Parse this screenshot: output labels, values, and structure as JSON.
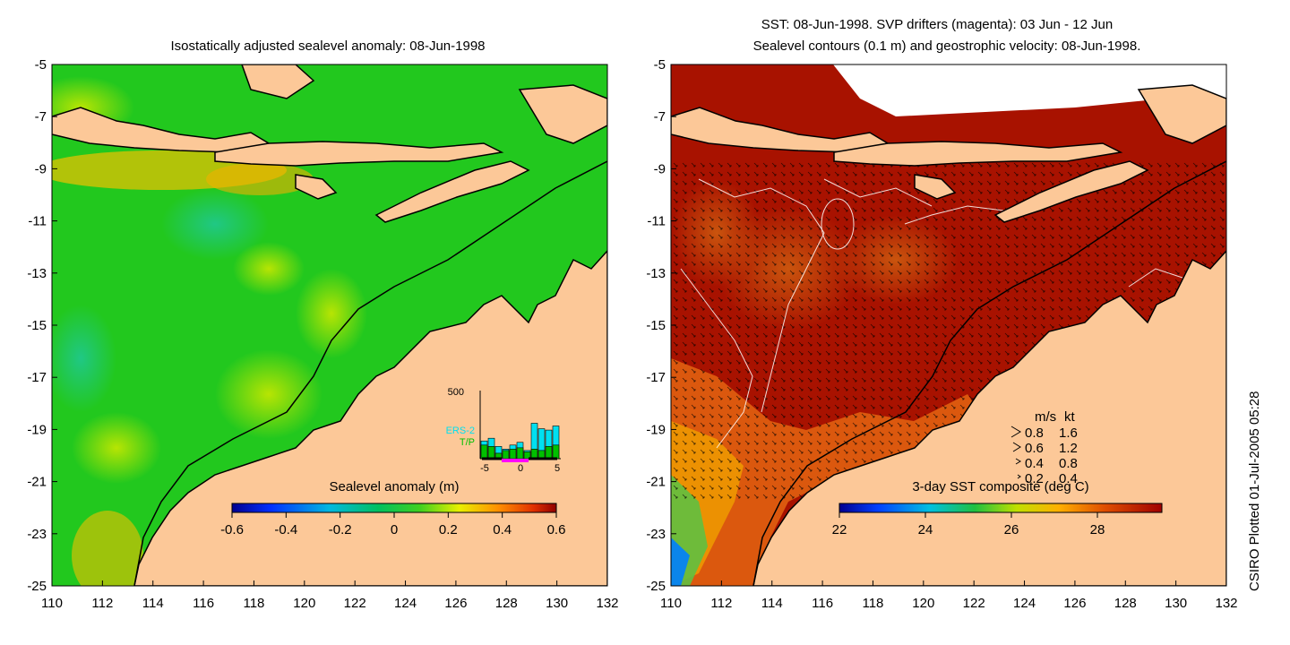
{
  "left_panel": {
    "title": "Isostatically adjusted sealevel anomaly: 08-Jun-1998",
    "colorbar": {
      "label": "Sealevel anomaly (m)",
      "ticks": [
        "-0.6",
        "-0.4",
        "-0.2",
        "0",
        "0.2",
        "0.4",
        "0.6"
      ],
      "range": [
        -0.6,
        0.6
      ]
    },
    "inset": {
      "ymax_label": "500",
      "legend": [
        "ERS-2",
        "T/P"
      ],
      "legend_colors": [
        "#00e0f0",
        "#00c000"
      ],
      "x_ticks": [
        "-5",
        "0",
        "5"
      ],
      "ers2_counts": [
        130,
        150,
        90,
        70,
        100,
        120,
        60,
        260,
        220,
        210,
        240
      ],
      "tp_counts": [
        100,
        90,
        40,
        60,
        70,
        80,
        50,
        70,
        60,
        90,
        100
      ],
      "y_max": 500
    }
  },
  "right_panel": {
    "title_line1": "SST: 08-Jun-1998. SVP drifters (magenta): 03 Jun - 12 Jun",
    "title_line2": "Sealevel contours (0.1 m) and geostrophic velocity: 08-Jun-1998.",
    "colorbar": {
      "label": "3-day SST composite (deg C)",
      "ticks": [
        "22",
        "24",
        "26",
        "28"
      ],
      "range": [
        22,
        29.5
      ]
    },
    "speed_legend": {
      "header_ms": "m/s",
      "header_kt": "kt",
      "rows": [
        {
          "ms": "0.8",
          "kt": "1.6"
        },
        {
          "ms": "0.6",
          "kt": "1.2"
        },
        {
          "ms": "0.4",
          "kt": "0.8"
        },
        {
          "ms": "0.2",
          "kt": "0.4"
        }
      ]
    }
  },
  "axes": {
    "lon_ticks": [
      "110",
      "112",
      "114",
      "116",
      "118",
      "120",
      "122",
      "124",
      "126",
      "128",
      "130",
      "132"
    ],
    "lat_ticks": [
      "-5",
      "-7",
      "-9",
      "-11",
      "-13",
      "-15",
      "-17",
      "-19",
      "-21",
      "-23",
      "-25"
    ],
    "lon_range": [
      110,
      132
    ],
    "lat_range": [
      -25,
      -5
    ]
  },
  "colors": {
    "land": "#fcc898",
    "ocean_left": "#22c81e",
    "ocean_right_warm": "#a81200",
    "coast": "#000000"
  },
  "watermark": "CSIRO Plotted 01-Jul-2005 05:28"
}
